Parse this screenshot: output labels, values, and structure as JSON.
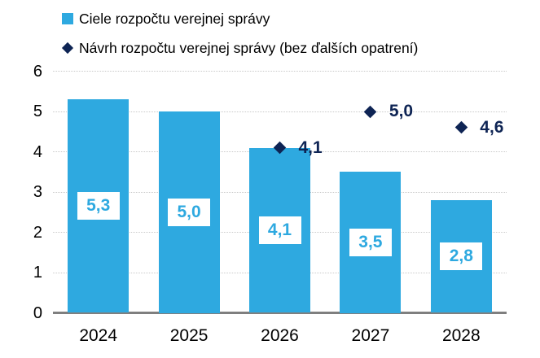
{
  "legend": {
    "items": [
      {
        "label": "Ciele rozpočtu verejnej správy",
        "marker": "square",
        "color": "#2EA9E0"
      },
      {
        "label": "Návrh rozpočtu verejnej správy (bez ďalších opatrení)",
        "marker": "diamond",
        "color": "#0E2454"
      }
    ]
  },
  "colors": {
    "bar": "#2EA9E0",
    "diamond": "#0E2454",
    "axis_line": "#7f7f7f",
    "gridline": "#c9c9c9",
    "bar_label_text": "#2EA9E0",
    "bar_label_bg": "#ffffff",
    "diamond_label_text": "#0E2454"
  },
  "chart_data": {
    "type": "bar",
    "categories": [
      "2024",
      "2025",
      "2026",
      "2027",
      "2028"
    ],
    "series": [
      {
        "name": "Ciele rozpočtu verejnej správy",
        "type": "bar",
        "color": "#2EA9E0",
        "values": [
          5.3,
          5.0,
          4.1,
          3.5,
          2.8
        ],
        "labels": [
          "5,3",
          "5,0",
          "4,1",
          "3,5",
          "2,8"
        ]
      },
      {
        "name": "Návrh rozpočtu verejnej správy (bez ďalších opatrení)",
        "type": "scatter",
        "marker": "diamond",
        "color": "#0E2454",
        "values": [
          null,
          null,
          4.1,
          5.0,
          4.6
        ],
        "labels": [
          null,
          null,
          "4,1",
          "5,0",
          "4,6"
        ]
      }
    ],
    "title": "",
    "xlabel": "",
    "ylabel": "",
    "ylim": [
      0,
      6
    ],
    "yticks": [
      0,
      1,
      2,
      3,
      4,
      5,
      6
    ],
    "grid": "horizontal-dotted",
    "legend_position": "top-left",
    "decimal_separator": ","
  }
}
